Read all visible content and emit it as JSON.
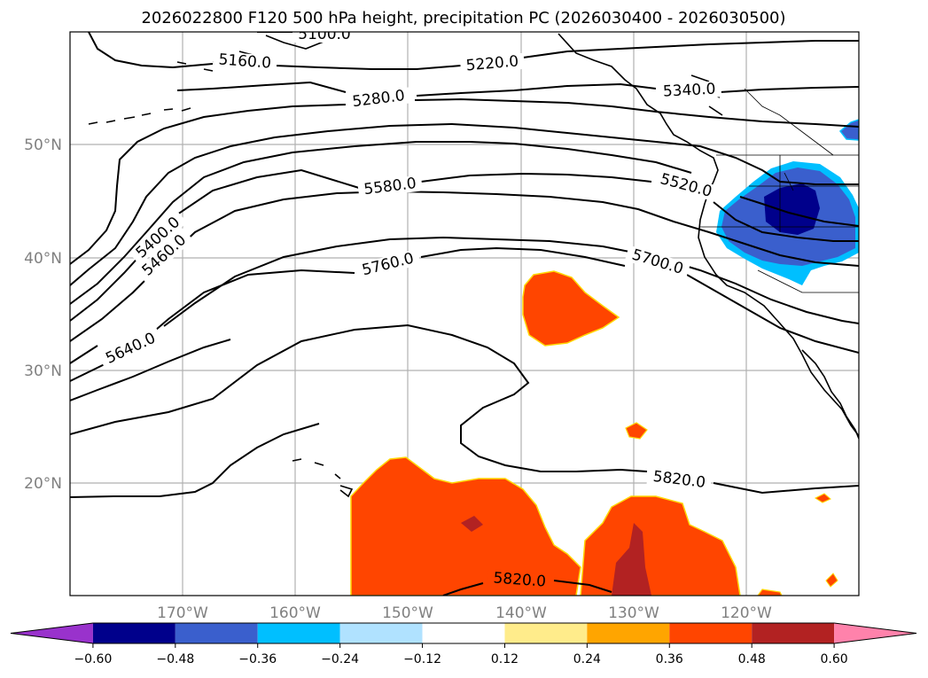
{
  "title": "2026022800 F120 500 hPa height, precipitation PC (2026030400 - 2026030500)",
  "lat_labels": [
    "50°N",
    "40°N",
    "30°N",
    "20°N"
  ],
  "lon_labels": [
    "170°W",
    "160°W",
    "150°W",
    "140°W",
    "130°W",
    "120°W"
  ],
  "contour_labels": [
    "5100.0",
    "5160.0",
    "5220.0",
    "5280.0",
    "5340.0",
    "5400.0",
    "5460.0",
    "5520.0",
    "5580.0",
    "5640.0",
    "5700.0",
    "5760.0",
    "5820.0",
    "5820.0"
  ],
  "colorbar": {
    "ticks": [
      "−0.60",
      "−0.48",
      "−0.36",
      "−0.24",
      "−0.12",
      "0.12",
      "0.24",
      "0.36",
      "0.48",
      "0.60"
    ],
    "colors": [
      "#9932cc",
      "#00008b",
      "#3a5fcd",
      "#00bfff",
      "#b0e2ff",
      "#ffffff",
      "#ffec8b",
      "#ffa500",
      "#ff4500",
      "#b22222",
      "#ff82ab"
    ]
  }
}
